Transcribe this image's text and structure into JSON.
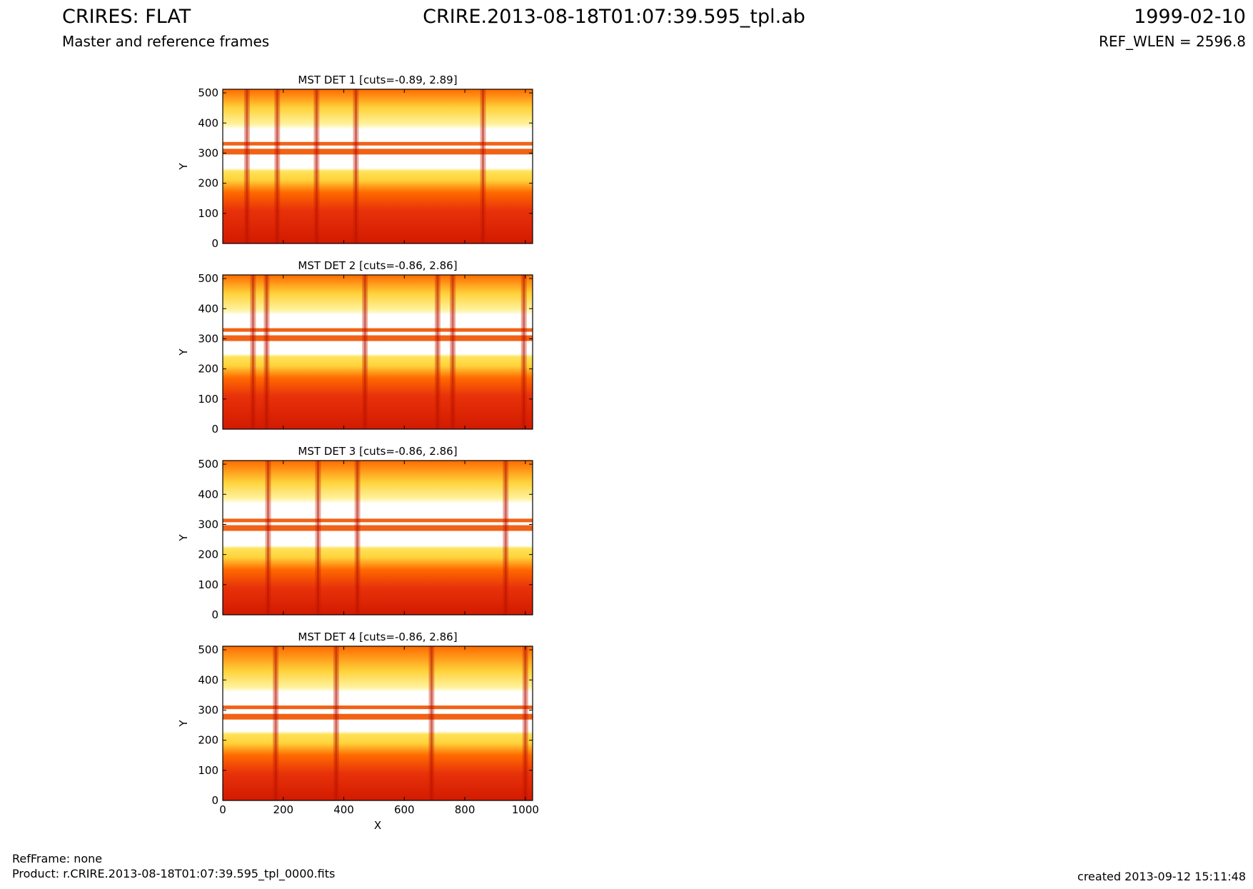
{
  "header": {
    "title_left": "CRIRES: FLAT",
    "title_center": "CRIRE.2013-08-18T01:07:39.595_tpl.ab",
    "title_right": "1999-02-10",
    "subtitle_left": "Master and reference frames",
    "subtitle_right": "REF_WLEN = 2596.8"
  },
  "footer": {
    "refframe": "RefFrame: none",
    "product": "Product: r.CRIRE.2013-08-18T01:07:39.595_tpl_0000.fits",
    "created": "created 2013-09-12 15:11:48"
  },
  "colors": {
    "low": "#d21a00",
    "mid": "#ff6a00",
    "high": "#ffd23a",
    "saturated": "#ffffff",
    "band": "#f05a0a"
  },
  "chart_data": [
    {
      "type": "heatmap",
      "title": "MST DET 1 [cuts=-0.89, 2.89]",
      "xlabel": "",
      "ylabel": "Y",
      "xlim": [
        0,
        1024
      ],
      "ylim": [
        0,
        512
      ],
      "xticks": [
        0,
        200,
        400,
        600,
        800,
        1000
      ],
      "yticks": [
        0,
        100,
        200,
        300,
        400,
        500
      ],
      "show_xtick_labels": false,
      "cuts": [
        -0.89,
        2.89
      ],
      "bright_region_y": [
        250,
        380
      ],
      "band_rows_y": [
        305,
        330
      ],
      "dark_columns_x": [
        80,
        180,
        310,
        440,
        860
      ]
    },
    {
      "type": "heatmap",
      "title": "MST DET 2 [cuts=-0.86, 2.86]",
      "xlabel": "",
      "ylabel": "Y",
      "xlim": [
        0,
        1024
      ],
      "ylim": [
        0,
        512
      ],
      "xticks": [
        0,
        200,
        400,
        600,
        800,
        1000
      ],
      "yticks": [
        0,
        100,
        200,
        300,
        400,
        500
      ],
      "show_xtick_labels": false,
      "cuts": [
        -0.86,
        2.86
      ],
      "bright_region_y": [
        250,
        380
      ],
      "band_rows_y": [
        302,
        328
      ],
      "dark_columns_x": [
        100,
        145,
        470,
        710,
        760,
        995
      ]
    },
    {
      "type": "heatmap",
      "title": "MST DET 3 [cuts=-0.86, 2.86]",
      "xlabel": "",
      "ylabel": "Y",
      "xlim": [
        0,
        1024
      ],
      "ylim": [
        0,
        512
      ],
      "xticks": [
        0,
        200,
        400,
        600,
        800,
        1000
      ],
      "yticks": [
        0,
        100,
        200,
        300,
        400,
        500
      ],
      "show_xtick_labels": false,
      "cuts": [
        -0.86,
        2.86
      ],
      "bright_region_y": [
        230,
        370
      ],
      "band_rows_y": [
        288,
        312
      ],
      "dark_columns_x": [
        150,
        315,
        445,
        935
      ]
    },
    {
      "type": "heatmap",
      "title": "MST DET 4 [cuts=-0.86, 2.86]",
      "xlabel": "X",
      "ylabel": "Y",
      "xlim": [
        0,
        1024
      ],
      "ylim": [
        0,
        512
      ],
      "xticks": [
        0,
        200,
        400,
        600,
        800,
        1000
      ],
      "yticks": [
        0,
        100,
        200,
        300,
        400,
        500
      ],
      "show_xtick_labels": true,
      "cuts": [
        -0.86,
        2.86
      ],
      "bright_region_y": [
        230,
        360
      ],
      "band_rows_y": [
        278,
        308
      ],
      "dark_columns_x": [
        175,
        375,
        690,
        1000
      ]
    }
  ]
}
